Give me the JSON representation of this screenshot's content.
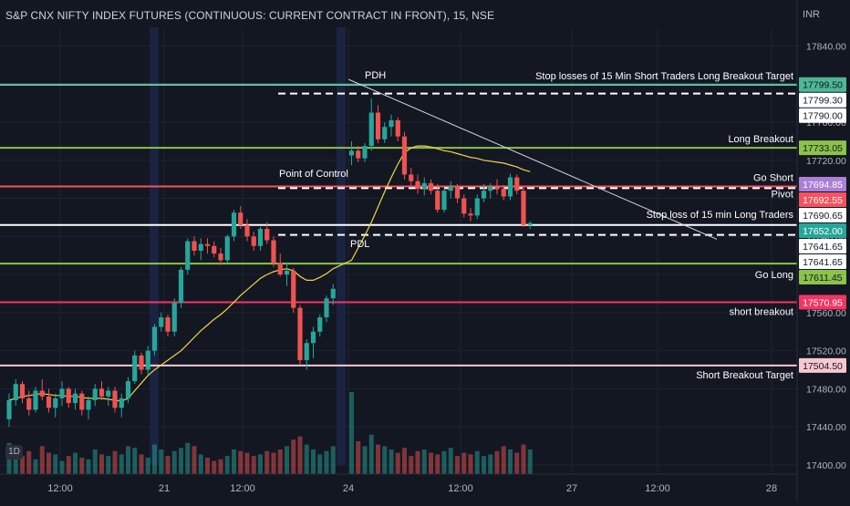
{
  "header": {
    "title": "S&P CNX NIFTY INDEX FUTURES (CONTINUOUS: CURRENT CONTRACT IN FRONT), 15, NSE",
    "currency": "INR",
    "interval_badge": "1D"
  },
  "colors": {
    "background": "#131722",
    "up": "#26a69a",
    "down": "#ef5350",
    "ma": "#f0d44c",
    "grid": "#1f2330",
    "axis_text": "#b2b5be"
  },
  "chart_data": {
    "type": "candlestick",
    "y_axis": {
      "range": [
        17400,
        17850
      ],
      "ticks": [
        "17400.00",
        "17440.00",
        "17480.00",
        "17520.00",
        "17560.00",
        "17600.00",
        "17640.00",
        "17680.00",
        "17720.00",
        "17760.00",
        "17800.00",
        "17840.00"
      ]
    },
    "x_axis": {
      "ticks": [
        "12:00",
        "21",
        "12:00",
        "24",
        "12:00",
        "27",
        "12:00",
        "28"
      ]
    },
    "candles": [
      [
        17448,
        17475,
        17440,
        17468
      ],
      [
        17468,
        17490,
        17462,
        17485
      ],
      [
        17485,
        17488,
        17465,
        17470
      ],
      [
        17470,
        17478,
        17452,
        17458
      ],
      [
        17458,
        17482,
        17455,
        17478
      ],
      [
        17478,
        17490,
        17468,
        17472
      ],
      [
        17472,
        17480,
        17455,
        17460
      ],
      [
        17460,
        17475,
        17450,
        17470
      ],
      [
        17470,
        17488,
        17462,
        17480
      ],
      [
        17480,
        17482,
        17460,
        17465
      ],
      [
        17465,
        17480,
        17458,
        17475
      ],
      [
        17475,
        17478,
        17452,
        17458
      ],
      [
        17458,
        17472,
        17448,
        17468
      ],
      [
        17468,
        17485,
        17462,
        17480
      ],
      [
        17480,
        17488,
        17468,
        17472
      ],
      [
        17472,
        17482,
        17462,
        17478
      ],
      [
        17478,
        17482,
        17455,
        17460
      ],
      [
        17460,
        17475,
        17450,
        17470
      ],
      [
        17470,
        17492,
        17465,
        17488
      ],
      [
        17488,
        17520,
        17485,
        17515
      ],
      [
        17515,
        17518,
        17495,
        17500
      ],
      [
        17500,
        17525,
        17495,
        17520
      ],
      [
        17520,
        17548,
        17515,
        17545
      ],
      [
        17545,
        17560,
        17540,
        17555
      ],
      [
        17555,
        17558,
        17535,
        17540
      ],
      [
        17540,
        17575,
        17535,
        17570
      ],
      [
        17570,
        17608,
        17565,
        17605
      ],
      [
        17605,
        17638,
        17600,
        17635
      ],
      [
        17635,
        17640,
        17620,
        17625
      ],
      [
        17625,
        17638,
        17615,
        17632
      ],
      [
        17632,
        17638,
        17622,
        17630
      ],
      [
        17630,
        17635,
        17618,
        17622
      ],
      [
        17622,
        17628,
        17610,
        17615
      ],
      [
        17615,
        17642,
        17612,
        17640
      ],
      [
        17640,
        17668,
        17635,
        17665
      ],
      [
        17665,
        17672,
        17648,
        17652
      ],
      [
        17652,
        17658,
        17635,
        17640
      ],
      [
        17640,
        17645,
        17625,
        17630
      ],
      [
        17630,
        17650,
        17625,
        17648
      ],
      [
        17648,
        17655,
        17632,
        17636
      ],
      [
        17636,
        17640,
        17608,
        17612
      ],
      [
        17612,
        17622,
        17598,
        17600
      ],
      [
        17600,
        17612,
        17588,
        17604
      ],
      [
        17604,
        17607,
        17560,
        17565
      ],
      [
        17565,
        17568,
        17505,
        17510
      ],
      [
        17510,
        17532,
        17500,
        17528
      ],
      [
        17528,
        17545,
        17512,
        17540
      ],
      [
        17540,
        17558,
        17535,
        17555
      ],
      [
        17555,
        17578,
        17550,
        17575
      ],
      [
        17575,
        17590,
        17568,
        17585
      ],
      [
        17725,
        17740,
        17715,
        17730
      ],
      [
        17730,
        17735,
        17718,
        17722
      ],
      [
        17722,
        17738,
        17718,
        17735
      ],
      [
        17735,
        17785,
        17730,
        17770
      ],
      [
        17770,
        17778,
        17738,
        17742
      ],
      [
        17742,
        17760,
        17738,
        17755
      ],
      [
        17755,
        17768,
        17745,
        17762
      ],
      [
        17762,
        17765,
        17740,
        17745
      ],
      [
        17745,
        17750,
        17700,
        17705
      ],
      [
        17705,
        17712,
        17692,
        17698
      ],
      [
        17698,
        17705,
        17685,
        17690
      ],
      [
        17690,
        17702,
        17683,
        17696
      ],
      [
        17696,
        17700,
        17684,
        17688
      ],
      [
        17688,
        17695,
        17665,
        17668
      ],
      [
        17668,
        17690,
        17665,
        17688
      ],
      [
        17688,
        17698,
        17680,
        17692
      ],
      [
        17692,
        17695,
        17675,
        17680
      ],
      [
        17680,
        17684,
        17660,
        17664
      ],
      [
        17664,
        17670,
        17656,
        17662
      ],
      [
        17662,
        17684,
        17658,
        17680
      ],
      [
        17680,
        17695,
        17676,
        17688
      ],
      [
        17688,
        17696,
        17680,
        17692
      ],
      [
        17692,
        17700,
        17684,
        17690
      ],
      [
        17690,
        17694,
        17678,
        17682
      ],
      [
        17682,
        17706,
        17678,
        17702
      ],
      [
        17702,
        17705,
        17684,
        17688
      ],
      [
        17688,
        17692,
        17650,
        17652
      ],
      [
        17652,
        17656,
        17648,
        17654
      ]
    ],
    "volumes": [
      38,
      30,
      22,
      28,
      18,
      34,
      26,
      24,
      16,
      22,
      26,
      20,
      18,
      30,
      24,
      22,
      28,
      24,
      34,
      32,
      24,
      20,
      36,
      30,
      22,
      28,
      32,
      38,
      34,
      24,
      20,
      16,
      18,
      22,
      30,
      28,
      26,
      22,
      24,
      28,
      26,
      30,
      34,
      42,
      46,
      36,
      30,
      24,
      28,
      34,
      100,
      40,
      34,
      48,
      36,
      34,
      30,
      26,
      32,
      22,
      28,
      30,
      26,
      24,
      28,
      32,
      22,
      26,
      24,
      28,
      22,
      24,
      28,
      34,
      30,
      26,
      36,
      30
    ],
    "moving_average": [
      17468,
      17470,
      17472,
      17473,
      17474,
      17475,
      17474,
      17473,
      17473,
      17472,
      17472,
      17471,
      17470,
      17470,
      17470,
      17469,
      17468,
      17467,
      17470,
      17478,
      17486,
      17494,
      17500,
      17505,
      17510,
      17515,
      17520,
      17527,
      17534,
      17541,
      17547,
      17553,
      17558,
      17564,
      17571,
      17578,
      17584,
      17590,
      17596,
      17600,
      17603,
      17605,
      17606,
      17604,
      17598,
      17594,
      17594,
      17597,
      17601,
      17606,
      17615,
      17628,
      17641,
      17655,
      17671,
      17687,
      17702,
      17716,
      17728,
      17733,
      17735,
      17735,
      17734,
      17732,
      17730,
      17729,
      17727,
      17725,
      17723,
      17722,
      17720,
      17719,
      17718,
      17717,
      17715,
      17713,
      17710,
      17708
    ],
    "levels": [
      {
        "label": "Stop losses of 15 Min Short Traders   Long Breakout Target",
        "price_label": "17799.30",
        "value": 17799.3,
        "color": "#ffffff",
        "style": "solid",
        "text_color": "#ffffff",
        "label_color": "#ffffff",
        "label_text_color": "#131722"
      },
      {
        "label": "",
        "price_label": "17790.00",
        "value": 17790.0,
        "color": "#ffffff",
        "style": "dashed",
        "text_color": "#ffffff",
        "label_color": "#ffffff",
        "label_text_color": "#131722"
      },
      {
        "label": "",
        "price_label": "17799.50",
        "value": 17799.5,
        "color": "#4db892",
        "style": "solid",
        "text_color": "#ffffff",
        "label_color": "#4db892",
        "label_text_color": "#131722"
      },
      {
        "label": "Long Breakout",
        "price_label": "17733.05",
        "value": 17733.05,
        "color": "#8bc34a",
        "style": "solid",
        "text_color": "#ffffff",
        "label_color": "#8bc34a",
        "label_text_color": "#131722"
      },
      {
        "label": "",
        "price_label": "17694.85",
        "value": 17694.85,
        "color": "#ab7fd6",
        "style": "none",
        "text_color": "#ffffff",
        "label_color": "#ab7fd6",
        "label_text_color": "#ffffff"
      },
      {
        "label": "Go Short",
        "price_label": "17692.55",
        "value": 17692.55,
        "color": "#f7525f",
        "style": "solid",
        "text_color": "#ffffff",
        "label_color": "#f7525f",
        "label_text_color": "#ffffff"
      },
      {
        "label": "Pivot",
        "price_label": "17690.65",
        "value": 17690.65,
        "color": "#ffffff",
        "style": "dashed",
        "text_color": "#ffffff",
        "label_color": "#ffffff",
        "label_text_color": "#131722"
      },
      {
        "label": "Stop loss of 15  min  Long Traders",
        "price_label": "17652.00",
        "value": 17652.0,
        "color": "#ffffff",
        "style": "solid",
        "text_color": "#ffffff",
        "label_color": "#26a69a",
        "label_text_color": "#ffffff"
      },
      {
        "label": "",
        "price_label": "17641.65",
        "value": 17641.65,
        "color": "#ffffff",
        "style": "dashed",
        "text_color": "#ffffff",
        "label_color": "#ffffff",
        "label_text_color": "#131722"
      },
      {
        "label": "",
        "price_label": "17641.65",
        "value": 17641.65,
        "color": "#ffffff",
        "style": "none",
        "text_color": "#ffffff",
        "label_color": "#ffffff",
        "label_text_color": "#131722"
      },
      {
        "label": "Go Long",
        "price_label": "17611.45",
        "value": 17611.45,
        "color": "#8bc34a",
        "style": "solid",
        "text_color": "#ffffff",
        "label_color": "#8bc34a",
        "label_text_color": "#131722"
      },
      {
        "label": "short breakout",
        "price_label": "17570.95",
        "value": 17570.95,
        "color": "#f23663",
        "style": "solid",
        "text_color": "#ffffff",
        "label_color": "#f23663",
        "label_text_color": "#ffffff"
      },
      {
        "label": "Short  Breakout Target",
        "price_label": "17504.50",
        "value": 17504.5,
        "color": "#f8c8d0",
        "style": "solid",
        "text_color": "#ffffff",
        "label_color": "#f8c8d0",
        "label_text_color": "#131722"
      }
    ],
    "annotations": [
      {
        "text": "PDH",
        "price": 17801
      },
      {
        "text": "PDL",
        "price": 17645
      },
      {
        "text": "Point of Control",
        "price": 17694
      }
    ],
    "trendline": {
      "from_price": 17805,
      "to_price": 17637
    }
  }
}
